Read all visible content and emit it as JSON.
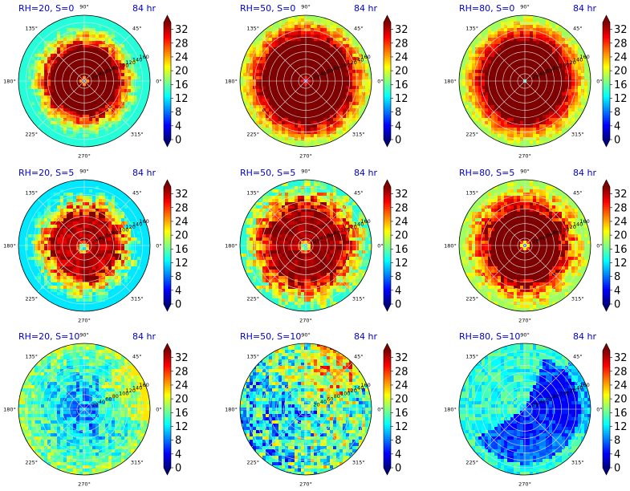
{
  "chart_data": {
    "type": "polar-contour",
    "panels": [
      {
        "title_left": "RH=20, S=0",
        "title_right": "84 hr",
        "pattern": 0
      },
      {
        "title_left": "RH=50, S=0",
        "title_right": "84 hr",
        "pattern": 1
      },
      {
        "title_left": "RH=80, S=0",
        "title_right": "84 hr",
        "pattern": 2
      },
      {
        "title_left": "RH=20, S=5",
        "title_right": "84 hr",
        "pattern": 3
      },
      {
        "title_left": "RH=50, S=5",
        "title_right": "84 hr",
        "pattern": 4
      },
      {
        "title_left": "RH=80, S=5",
        "title_right": "84 hr",
        "pattern": 5
      },
      {
        "title_left": "RH=20, S=10",
        "title_right": "84 hr",
        "pattern": 6
      },
      {
        "title_left": "RH=50, S=10",
        "title_right": "84 hr",
        "pattern": 7
      },
      {
        "title_left": "RH=80, S=10",
        "title_right": "84 hr",
        "pattern": 8
      }
    ],
    "angle_labels": [
      "0°",
      "45°",
      "90°",
      "135°",
      "180°",
      "225°",
      "270°",
      "315°"
    ],
    "radial_ticks": [
      20,
      40,
      60,
      80,
      100,
      120,
      140,
      160
    ],
    "radial_max": 180,
    "colorbar_ticks": [
      0,
      4,
      8,
      12,
      16,
      20,
      24,
      28,
      32
    ],
    "colorbar_range": [
      0,
      34
    ],
    "colormap": [
      "#00007f",
      "#0000ff",
      "#007fff",
      "#00ffff",
      "#7fff7f",
      "#ffff00",
      "#ff7f00",
      "#ff0000",
      "#7f0000"
    ]
  }
}
